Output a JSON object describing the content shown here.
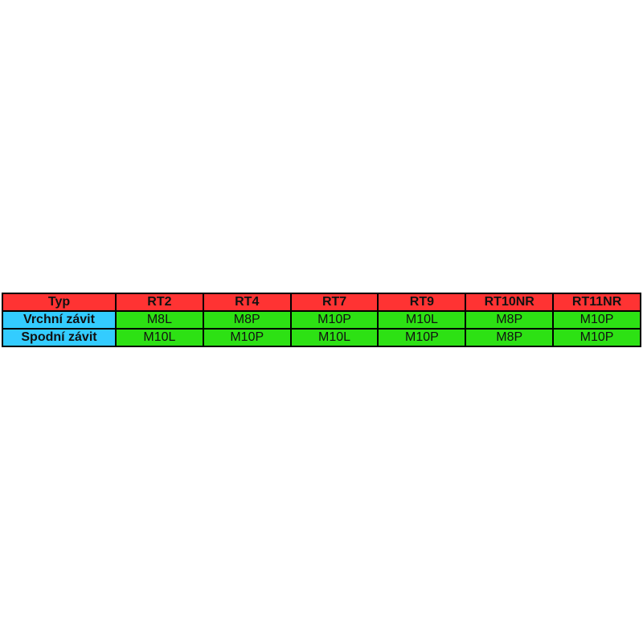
{
  "page": {
    "background": "#ffffff"
  },
  "table": {
    "columns": [
      "Typ",
      "RT2",
      "RT4",
      "RT7",
      "RT9",
      "RT10NR",
      "RT11NR"
    ],
    "rows": [
      {
        "label": "Vrchní závit",
        "values": [
          "M8L",
          "M8P",
          "M10P",
          "M10L",
          "M8P",
          "M10P"
        ]
      },
      {
        "label": "Spodní závit",
        "values": [
          "M10L",
          "M10P",
          "M10L",
          "M10P",
          "M8P",
          "M10P"
        ]
      }
    ],
    "colors": {
      "header_bg": "#ff3333",
      "label_bg": "#33ccff",
      "value_bg": "#2de114",
      "border": "#000000",
      "text": "#111111"
    }
  },
  "chart_data": {
    "type": "table",
    "title": "",
    "columns": [
      "Typ",
      "RT2",
      "RT4",
      "RT7",
      "RT9",
      "RT10NR",
      "RT11NR"
    ],
    "rows": [
      [
        "Vrchní závit",
        "M8L",
        "M8P",
        "M10P",
        "M10L",
        "M8P",
        "M10P"
      ],
      [
        "Spodní závit",
        "M10L",
        "M10P",
        "M10L",
        "M10P",
        "M8P",
        "M10P"
      ]
    ],
    "layout": {
      "header_fill": "#ff3333",
      "row_label_fill": "#33ccff",
      "value_fill": "#2de114",
      "grid": true,
      "position": "centered vertically, full width"
    }
  }
}
